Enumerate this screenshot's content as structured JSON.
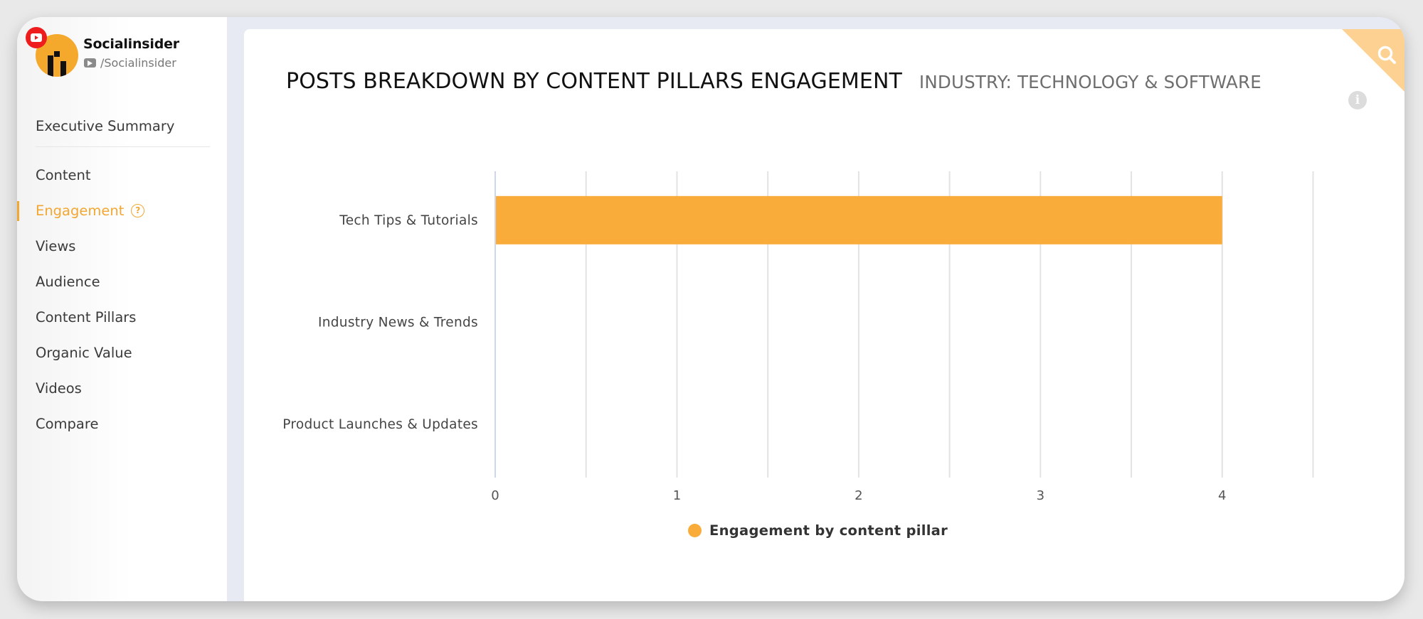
{
  "profile": {
    "name": "Socialinsider",
    "handle": "/Socialinsider",
    "platform_icon": "youtube-icon"
  },
  "nav": {
    "summary_label": "Executive Summary",
    "items": [
      {
        "label": "Content"
      },
      {
        "label": "Engagement",
        "active": true
      },
      {
        "label": "Views"
      },
      {
        "label": "Audience"
      },
      {
        "label": "Content Pillars"
      },
      {
        "label": "Organic Value"
      },
      {
        "label": "Videos"
      },
      {
        "label": "Compare"
      }
    ],
    "help_glyph": "?"
  },
  "panel": {
    "title": "POSTS BREAKDOWN BY CONTENT PILLARS ENGAGEMENT",
    "subtitle": "INDUSTRY: TECHNOLOGY & SOFTWARE",
    "info_glyph": "i"
  },
  "colors": {
    "accent": "#f2a733",
    "bar": "#f9ac3a",
    "youtube_red": "#ee1c1c",
    "corner": "#fdd191"
  },
  "chart_data": {
    "type": "bar",
    "orientation": "horizontal",
    "categories": [
      "Tech Tips & Tutorials",
      "Industry News & Trends",
      "Product Launches & Updates"
    ],
    "series": [
      {
        "name": "Engagement by content pillar",
        "values": [
          4,
          0,
          0
        ]
      }
    ],
    "xlim": [
      0,
      4.5
    ],
    "x_ticks": [
      0,
      1,
      2,
      3,
      4
    ],
    "grid": true,
    "legend_position": "bottom"
  }
}
